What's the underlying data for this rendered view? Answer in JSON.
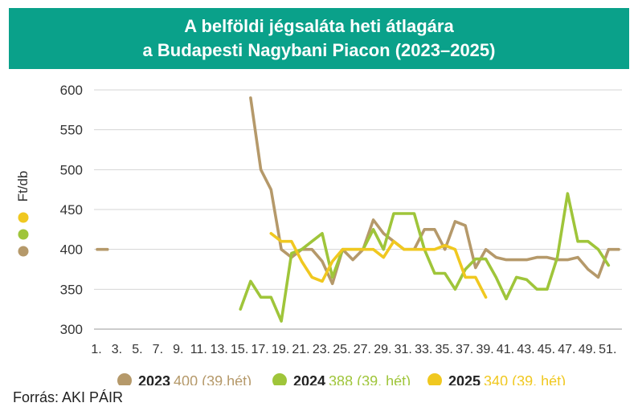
{
  "chart_data": {
    "type": "line",
    "title_lines": [
      "A belföldi jégsaláta heti átlagára",
      "a Budapesti Nagybani Piacon (2023–2025)"
    ],
    "ylabel": "Ft/db",
    "ylim": [
      300,
      600
    ],
    "yticks": [
      300,
      350,
      400,
      450,
      500,
      550,
      600
    ],
    "xlim": [
      1,
      52
    ],
    "xtick_labels": [
      "1.",
      "3.",
      "5.",
      "7.",
      "9.",
      "11.",
      "13.",
      "15.",
      "17.",
      "19.",
      "21.",
      "23.",
      "25.",
      "27.",
      "29.",
      "31.",
      "33.",
      "35.",
      "37.",
      "39.",
      "41.",
      "43.",
      "45.",
      "47.",
      "49.",
      "51."
    ],
    "grid": "horizontal",
    "legend_position": "bottom",
    "series": [
      {
        "name": "2023",
        "note": "400 (39.hét)",
        "color": "#b5996a",
        "segments": [
          [
            [
              1,
              400
            ],
            [
              2,
              400
            ]
          ],
          [
            [
              16,
              590
            ],
            [
              17,
              500
            ],
            [
              18,
              475
            ],
            [
              19,
              400
            ],
            [
              20,
              390
            ],
            [
              21,
              400
            ],
            [
              22,
              400
            ],
            [
              23,
              385
            ],
            [
              24,
              357
            ],
            [
              25,
              400
            ],
            [
              26,
              387
            ],
            [
              27,
              400
            ],
            [
              28,
              437
            ],
            [
              29,
              420
            ],
            [
              30,
              410
            ],
            [
              31,
              400
            ],
            [
              32,
              400
            ],
            [
              33,
              425
            ],
            [
              34,
              425
            ],
            [
              35,
              400
            ],
            [
              36,
              435
            ],
            [
              37,
              430
            ],
            [
              38,
              377
            ],
            [
              39,
              400
            ],
            [
              40,
              390
            ],
            [
              41,
              387
            ],
            [
              42,
              387
            ],
            [
              43,
              387
            ],
            [
              44,
              390
            ],
            [
              45,
              390
            ],
            [
              46,
              387
            ],
            [
              47,
              387
            ],
            [
              48,
              390
            ],
            [
              49,
              375
            ],
            [
              50,
              365
            ],
            [
              51,
              400
            ],
            [
              52,
              400
            ]
          ]
        ]
      },
      {
        "name": "2024",
        "note": "388 (39. hét)",
        "color": "#9fc53a",
        "segments": [
          [
            [
              15,
              325
            ],
            [
              16,
              360
            ],
            [
              17,
              340
            ],
            [
              18,
              340
            ],
            [
              19,
              310
            ],
            [
              20,
              395
            ],
            [
              21,
              400
            ],
            [
              22,
              410
            ],
            [
              23,
              420
            ],
            [
              24,
              365
            ],
            [
              25,
              400
            ],
            [
              26,
              400
            ],
            [
              27,
              400
            ],
            [
              28,
              425
            ],
            [
              29,
              400
            ],
            [
              30,
              445
            ],
            [
              31,
              445
            ],
            [
              32,
              445
            ],
            [
              33,
              400
            ],
            [
              34,
              370
            ],
            [
              35,
              370
            ],
            [
              36,
              350
            ],
            [
              37,
              375
            ],
            [
              38,
              388
            ],
            [
              39,
              388
            ],
            [
              40,
              365
            ],
            [
              41,
              338
            ],
            [
              42,
              365
            ],
            [
              43,
              362
            ],
            [
              44,
              350
            ],
            [
              45,
              350
            ],
            [
              46,
              390
            ],
            [
              47,
              470
            ],
            [
              48,
              410
            ],
            [
              49,
              410
            ],
            [
              50,
              400
            ],
            [
              51,
              380
            ]
          ]
        ]
      },
      {
        "name": "2025",
        "note": "340 (39. hét)",
        "color": "#f0c820",
        "segments": [
          [
            [
              18,
              420
            ],
            [
              19,
              410
            ],
            [
              20,
              410
            ],
            [
              21,
              385
            ],
            [
              22,
              365
            ],
            [
              23,
              360
            ],
            [
              24,
              385
            ],
            [
              25,
              400
            ],
            [
              26,
              400
            ],
            [
              27,
              400
            ],
            [
              28,
              400
            ],
            [
              29,
              390
            ],
            [
              30,
              410
            ],
            [
              31,
              400
            ],
            [
              32,
              400
            ],
            [
              33,
              400
            ],
            [
              34,
              400
            ],
            [
              35,
              405
            ],
            [
              36,
              400
            ],
            [
              37,
              365
            ],
            [
              38,
              365
            ],
            [
              39,
              340
            ]
          ]
        ]
      }
    ]
  },
  "source": "Forrás: AKI PÁIR"
}
